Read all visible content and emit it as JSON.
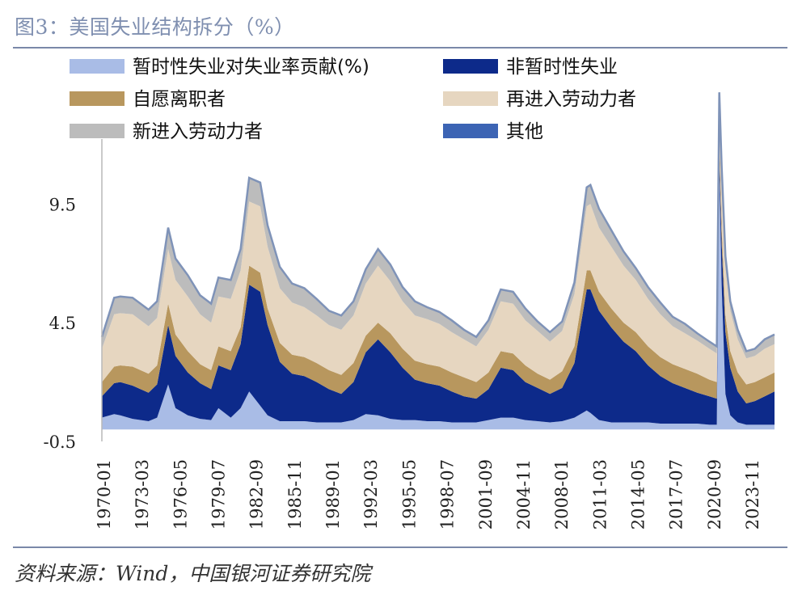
{
  "header": {
    "title": "图3：美国失业结构拆分（%）"
  },
  "footer": {
    "source": "资料来源：Wind，中国银河证券研究院"
  },
  "chart_data": {
    "type": "area",
    "title": "图3：美国失业结构拆分（%）",
    "ylim": [
      -0.5,
      12.3
    ],
    "y_ticks": [
      "9.5",
      "4.5",
      "-0.5"
    ],
    "x_tick_labels": [
      "1970-01",
      "1973-03",
      "1976-05",
      "1979-07",
      "1982-09",
      "1985-11",
      "1989-01",
      "1992-03",
      "1995-05",
      "1998-07",
      "2001-09",
      "2004-11",
      "2008-01",
      "2011-03",
      "2014-05",
      "2017-07",
      "2020-09",
      "2023-11"
    ],
    "x": [
      1970.0,
      1971.0,
      1971.5,
      1972.5,
      1973.8,
      1974.5,
      1975.4,
      1976.0,
      1977.0,
      1978.0,
      1978.9,
      1979.5,
      1980.5,
      1981.3,
      1982.0,
      1982.9,
      1983.5,
      1984.5,
      1985.5,
      1986.5,
      1987.5,
      1988.5,
      1989.5,
      1990.5,
      1991.5,
      1992.5,
      1993.5,
      1994.5,
      1995.5,
      1996.5,
      1997.5,
      1998.5,
      1999.5,
      2000.5,
      2001.5,
      2002.5,
      2003.5,
      2004.5,
      2005.5,
      2006.5,
      2007.5,
      2008.5,
      2009.5,
      2009.8,
      2010.5,
      2011.5,
      2012.5,
      2013.5,
      2014.5,
      2015.5,
      2016.5,
      2017.5,
      2018.5,
      2019.5,
      2020.1,
      2020.3,
      2020.5,
      2020.8,
      2021.2,
      2021.8,
      2022.5,
      2023.2,
      2024.0,
      2024.8
    ],
    "series": [
      {
        "name": "暂时性失业对失业率贡献(%)",
        "color": "#a9bce6",
        "values": [
          0.5,
          0.65,
          0.6,
          0.45,
          0.35,
          0.5,
          1.9,
          0.9,
          0.6,
          0.45,
          0.4,
          0.9,
          0.5,
          0.9,
          1.6,
          1.0,
          0.6,
          0.35,
          0.35,
          0.35,
          0.3,
          0.3,
          0.3,
          0.4,
          0.65,
          0.6,
          0.45,
          0.4,
          0.4,
          0.35,
          0.35,
          0.3,
          0.3,
          0.3,
          0.4,
          0.5,
          0.5,
          0.4,
          0.35,
          0.3,
          0.35,
          0.5,
          0.8,
          0.7,
          0.4,
          0.3,
          0.3,
          0.3,
          0.3,
          0.25,
          0.25,
          0.25,
          0.25,
          0.2,
          0.2,
          11.0,
          6.0,
          1.5,
          0.6,
          0.3,
          0.2,
          0.2,
          0.2,
          0.2
        ]
      },
      {
        "name": "非暂时性失业",
        "color": "#0d2a8a",
        "values": [
          0.9,
          1.3,
          1.4,
          1.4,
          1.2,
          1.4,
          2.5,
          2.2,
          1.8,
          1.5,
          1.3,
          1.8,
          2.0,
          2.7,
          4.5,
          4.8,
          3.8,
          2.5,
          2.0,
          1.9,
          1.7,
          1.4,
          1.2,
          1.6,
          2.6,
          3.2,
          2.8,
          2.2,
          1.7,
          1.6,
          1.5,
          1.3,
          1.1,
          1.0,
          1.3,
          2.1,
          2.0,
          1.6,
          1.4,
          1.2,
          1.4,
          2.3,
          5.1,
          5.2,
          4.6,
          4.0,
          3.4,
          3.0,
          2.4,
          2.0,
          1.7,
          1.5,
          1.3,
          1.2,
          1.1,
          0.5,
          1.8,
          2.6,
          2.0,
          1.3,
          0.9,
          1.0,
          1.2,
          1.4
        ]
      },
      {
        "name": "自愿离职者",
        "color": "#b8975e",
        "values": [
          0.6,
          0.7,
          0.7,
          0.8,
          0.8,
          0.8,
          0.9,
          0.9,
          0.9,
          0.8,
          0.8,
          0.8,
          0.8,
          0.7,
          0.8,
          0.8,
          0.7,
          0.8,
          0.8,
          0.8,
          0.8,
          0.8,
          0.8,
          0.8,
          0.7,
          0.7,
          0.8,
          0.8,
          0.8,
          0.8,
          0.8,
          0.8,
          0.8,
          0.7,
          0.7,
          0.7,
          0.7,
          0.7,
          0.6,
          0.6,
          0.7,
          0.7,
          0.8,
          0.8,
          0.8,
          0.8,
          0.8,
          0.8,
          0.8,
          0.8,
          0.8,
          0.8,
          0.8,
          0.7,
          0.7,
          0.7,
          0.7,
          0.7,
          0.7,
          0.8,
          0.8,
          0.8,
          0.8,
          0.8
        ]
      },
      {
        "name": "再进入劳动力者",
        "color": "#e6d6c0",
        "values": [
          1.4,
          2.2,
          2.2,
          2.2,
          2.0,
          2.0,
          2.3,
          2.3,
          2.3,
          2.1,
          2.0,
          2.1,
          2.2,
          2.4,
          2.7,
          2.8,
          2.6,
          2.3,
          2.2,
          2.1,
          2.0,
          1.9,
          1.9,
          2.0,
          2.2,
          2.4,
          2.2,
          2.0,
          1.9,
          1.9,
          1.8,
          1.7,
          1.6,
          1.5,
          1.8,
          2.1,
          2.1,
          1.9,
          1.8,
          1.6,
          1.7,
          2.2,
          2.7,
          2.8,
          2.7,
          2.6,
          2.4,
          2.2,
          2.0,
          1.8,
          1.6,
          1.5,
          1.4,
          1.3,
          1.2,
          1.6,
          2.0,
          2.0,
          1.7,
          1.4,
          1.1,
          1.1,
          1.2,
          1.2
        ]
      },
      {
        "name": "新进入劳动力者",
        "color": "#bcbcbc",
        "values": [
          0.5,
          0.7,
          0.7,
          0.7,
          0.7,
          0.7,
          0.9,
          0.9,
          0.9,
          0.8,
          0.8,
          0.8,
          0.8,
          0.9,
          1.0,
          1.0,
          0.9,
          0.9,
          0.8,
          0.8,
          0.7,
          0.6,
          0.6,
          0.6,
          0.6,
          0.7,
          0.7,
          0.6,
          0.6,
          0.5,
          0.5,
          0.5,
          0.4,
          0.4,
          0.4,
          0.5,
          0.5,
          0.5,
          0.4,
          0.4,
          0.4,
          0.5,
          0.8,
          0.8,
          0.8,
          0.7,
          0.6,
          0.5,
          0.5,
          0.5,
          0.4,
          0.4,
          0.3,
          0.3,
          0.3,
          0.4,
          0.5,
          0.5,
          0.4,
          0.4,
          0.3,
          0.3,
          0.4,
          0.4
        ]
      },
      {
        "name": "其他",
        "color": "#3c64b4",
        "values": [
          0,
          0,
          0,
          0,
          0,
          0,
          0,
          0,
          0,
          0,
          0,
          0,
          0,
          0,
          0,
          0,
          0,
          0,
          0,
          0,
          0,
          0,
          0,
          0,
          0,
          0,
          0,
          0,
          0,
          0,
          0,
          0,
          0,
          0,
          0,
          0,
          0,
          0,
          0,
          0,
          0,
          0,
          0,
          0,
          0,
          0,
          0,
          0,
          0,
          0,
          0,
          0,
          0,
          0,
          0,
          0,
          0,
          0,
          0,
          0,
          0,
          0,
          0,
          0
        ]
      }
    ],
    "legend_placement": "top",
    "grid": false
  }
}
